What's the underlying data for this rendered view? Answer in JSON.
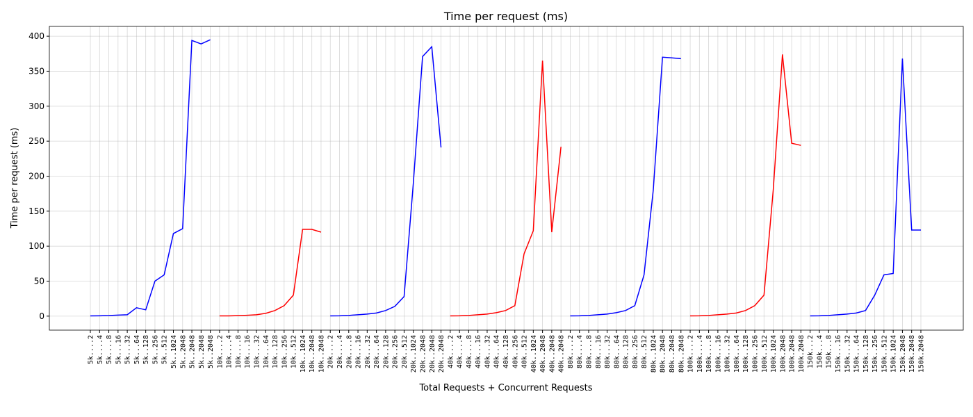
{
  "chart_data": {
    "type": "line",
    "title": "Time per request (ms)",
    "x_label": "Total Requests + Concurrent Requests",
    "y_label": "Time per request (ms)",
    "categories": [
      "5k....2",
      "5k....4",
      "5k....8",
      "5k...16",
      "5k...32",
      "5k...64",
      "5k..128",
      "5k..256",
      "5k..512",
      "5k..1024",
      "5k..2048",
      "5k..2048",
      "5k..2048",
      "5k..2048",
      "10k....2",
      "10k....4",
      "10k....8",
      "10k...16",
      "10k...32",
      "10k...64",
      "10k..128",
      "10k..256",
      "10k..512",
      "10k..1024",
      "10k..2048",
      "10k..2048",
      "20k....2",
      "20k....4",
      "20k....8",
      "20k...16",
      "20k...32",
      "20k...64",
      "20k..128",
      "20k..256",
      "20k..512",
      "20k..1024",
      "20k..2048",
      "20k..2048",
      "20k..2048",
      "40k....2",
      "40k....4",
      "40k....8",
      "40k...16",
      "40k...32",
      "40k...64",
      "40k..128",
      "40k..256",
      "40k..512",
      "40k..1024",
      "40k..2048",
      "40k..2048",
      "40k..2048",
      "80k....2",
      "80k....4",
      "80k....8",
      "80k...16",
      "80k...32",
      "80k...64",
      "80k..128",
      "80k..256",
      "80k..512",
      "80k..1024",
      "80k..2048",
      "80k..2048",
      "80k..2048",
      "100k....2",
      "100k....4",
      "100k....8",
      "100k...16",
      "100k...32",
      "100k...64",
      "100k..128",
      "100k..256",
      "100k..512",
      "100k.1024",
      "100k.2048",
      "100k.2048",
      "100k.2048",
      "150k...2",
      "150k...4",
      "150k...8",
      "150k...16",
      "150k...32",
      "150k...64",
      "150k..128",
      "150k..256",
      "150k..512",
      "150k.1024",
      "150k.2048",
      "150k.2048",
      "150k.2048"
    ],
    "series": [
      {
        "color": "#0000ff",
        "values": [
          0.3,
          0.5,
          0.8,
          1.5,
          2,
          12,
          9,
          50,
          59,
          118,
          125,
          394,
          389,
          395,
          null,
          null,
          null,
          null,
          null,
          null,
          null,
          null,
          null,
          null,
          null,
          null,
          null,
          null,
          null,
          null,
          null,
          null,
          null,
          null,
          null,
          null,
          null,
          null,
          null,
          null,
          null,
          null,
          null,
          null,
          null,
          null,
          null,
          null,
          null,
          null,
          null,
          null,
          null,
          null,
          null,
          null,
          null,
          null,
          null,
          null,
          null,
          null,
          null,
          null,
          null,
          null,
          null,
          null,
          null,
          null,
          null,
          null,
          null,
          null,
          null,
          null,
          null,
          null,
          null,
          null,
          null,
          null,
          null,
          null,
          null,
          null,
          null,
          null,
          null,
          null,
          null
        ]
      },
      {
        "color": "#ff0000",
        "values": [
          null,
          null,
          null,
          null,
          null,
          null,
          null,
          null,
          null,
          null,
          null,
          null,
          null,
          null,
          0.3,
          0.4,
          0.7,
          1.2,
          2,
          4,
          8,
          15,
          30,
          124,
          124,
          120,
          null,
          null,
          null,
          null,
          null,
          null,
          null,
          null,
          null,
          null,
          null,
          null,
          null,
          null,
          null,
          null,
          null,
          null,
          null,
          null,
          null,
          null,
          null,
          null,
          null,
          null,
          null,
          null,
          null,
          null,
          null,
          null,
          null,
          null,
          null,
          null,
          null,
          null,
          null,
          null,
          null,
          null,
          null,
          null,
          null,
          null,
          null,
          null,
          null,
          null,
          null,
          null,
          null,
          null,
          null,
          null,
          null,
          null,
          null,
          null,
          null,
          null,
          null,
          null,
          null
        ]
      },
      {
        "color": "#0000ff",
        "values": [
          null,
          null,
          null,
          null,
          null,
          null,
          null,
          null,
          null,
          null,
          null,
          null,
          null,
          null,
          null,
          null,
          null,
          null,
          null,
          null,
          null,
          null,
          null,
          null,
          null,
          null,
          0.3,
          0.5,
          1,
          2,
          3,
          4.5,
          8,
          14,
          28,
          190,
          371,
          385,
          241,
          null,
          null,
          null,
          null,
          null,
          null,
          null,
          null,
          null,
          null,
          null,
          null,
          null,
          null,
          null,
          null,
          null,
          null,
          null,
          null,
          null,
          null,
          null,
          null,
          null,
          null,
          null,
          null,
          null,
          null,
          null,
          null,
          null,
          null,
          null,
          null,
          null,
          null,
          null,
          null,
          null,
          null,
          null,
          null,
          null,
          null,
          null,
          null,
          null,
          null,
          null,
          null
        ]
      },
      {
        "color": "#ff0000",
        "values": [
          null,
          null,
          null,
          null,
          null,
          null,
          null,
          null,
          null,
          null,
          null,
          null,
          null,
          null,
          null,
          null,
          null,
          null,
          null,
          null,
          null,
          null,
          null,
          null,
          null,
          null,
          null,
          null,
          null,
          null,
          null,
          null,
          null,
          null,
          null,
          null,
          null,
          null,
          null,
          0.3,
          0.5,
          1,
          2,
          3,
          5,
          8,
          15,
          89,
          122,
          365,
          120,
          242,
          null,
          null,
          null,
          null,
          null,
          null,
          null,
          null,
          null,
          null,
          null,
          null,
          null,
          null,
          null,
          null,
          null,
          null,
          null,
          null,
          null,
          null,
          null,
          null,
          null,
          null,
          null,
          null,
          null,
          null,
          null,
          null,
          null,
          null,
          null,
          null,
          null,
          null,
          null
        ]
      },
      {
        "color": "#0000ff",
        "values": [
          null,
          null,
          null,
          null,
          null,
          null,
          null,
          null,
          null,
          null,
          null,
          null,
          null,
          null,
          null,
          null,
          null,
          null,
          null,
          null,
          null,
          null,
          null,
          null,
          null,
          null,
          null,
          null,
          null,
          null,
          null,
          null,
          null,
          null,
          null,
          null,
          null,
          null,
          null,
          null,
          null,
          null,
          null,
          null,
          null,
          null,
          null,
          null,
          null,
          null,
          null,
          null,
          0.3,
          0.5,
          1,
          2,
          3,
          5,
          8,
          15,
          59,
          180,
          370,
          369,
          368,
          null,
          null,
          null,
          null,
          null,
          null,
          null,
          null,
          null,
          null,
          null,
          null,
          null,
          null,
          null,
          null,
          null,
          null,
          null,
          null,
          null,
          null,
          null,
          null,
          null,
          null
        ]
      },
      {
        "color": "#ff0000",
        "values": [
          null,
          null,
          null,
          null,
          null,
          null,
          null,
          null,
          null,
          null,
          null,
          null,
          null,
          null,
          null,
          null,
          null,
          null,
          null,
          null,
          null,
          null,
          null,
          null,
          null,
          null,
          null,
          null,
          null,
          null,
          null,
          null,
          null,
          null,
          null,
          null,
          null,
          null,
          null,
          null,
          null,
          null,
          null,
          null,
          null,
          null,
          null,
          null,
          null,
          null,
          null,
          null,
          null,
          null,
          null,
          null,
          null,
          null,
          null,
          null,
          null,
          null,
          null,
          null,
          null,
          0.3,
          0.5,
          1,
          2,
          3,
          4.5,
          8,
          15,
          30,
          180,
          374,
          247,
          244,
          null,
          null,
          null,
          null,
          null,
          null,
          null,
          null,
          null,
          null,
          null,
          null,
          null
        ]
      },
      {
        "color": "#0000ff",
        "values": [
          null,
          null,
          null,
          null,
          null,
          null,
          null,
          null,
          null,
          null,
          null,
          null,
          null,
          null,
          null,
          null,
          null,
          null,
          null,
          null,
          null,
          null,
          null,
          null,
          null,
          null,
          null,
          null,
          null,
          null,
          null,
          null,
          null,
          null,
          null,
          null,
          null,
          null,
          null,
          null,
          null,
          null,
          null,
          null,
          null,
          null,
          null,
          null,
          null,
          null,
          null,
          null,
          null,
          null,
          null,
          null,
          null,
          null,
          null,
          null,
          null,
          null,
          null,
          null,
          null,
          null,
          null,
          null,
          null,
          null,
          null,
          null,
          null,
          null,
          null,
          null,
          null,
          null,
          0.3,
          0.5,
          1,
          2,
          3,
          4.5,
          8,
          30,
          59,
          61,
          368,
          123,
          123
        ]
      }
    ],
    "ylim": [
      -20,
      414
    ],
    "yticks": [
      0,
      50,
      100,
      150,
      200,
      250,
      300,
      350,
      400
    ],
    "grid": true
  }
}
